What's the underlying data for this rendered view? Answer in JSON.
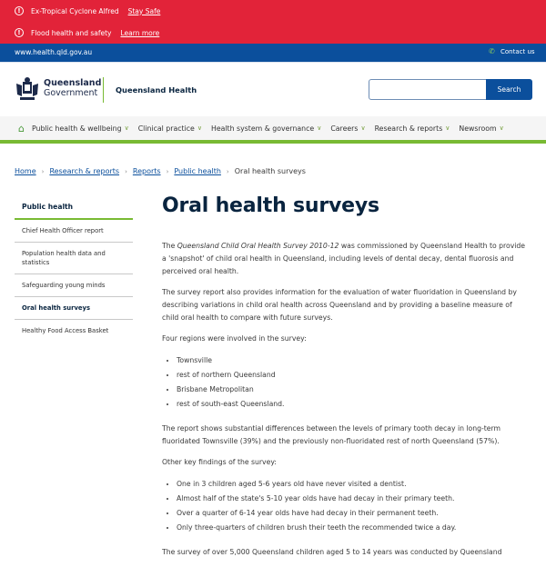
{
  "alerts": [
    {
      "text": "Ex-Tropical Cyclone Alfred",
      "link": "Stay Safe"
    },
    {
      "text": "Flood health and safety",
      "link": "Learn more"
    }
  ],
  "topbar": {
    "url": "www.health.qld.gov.au",
    "contact": "Contact us"
  },
  "header": {
    "logo_line1": "Queensland",
    "logo_line2": "Government",
    "site_name": "Queensland Health",
    "search_placeholder": "",
    "search_button": "Search"
  },
  "nav": [
    "Public health & wellbeing",
    "Clinical practice",
    "Health system & governance",
    "Careers",
    "Research & reports",
    "Newsroom"
  ],
  "breadcrumb": [
    "Home",
    "Research & reports",
    "Reports",
    "Public health"
  ],
  "breadcrumb_current": "Oral health surveys",
  "sidebar": {
    "heading": "Public health",
    "items": [
      "Chief Health Officer report",
      "Population health data and statistics",
      "Safeguarding young minds",
      "Oral health surveys",
      "Healthy Food Access Basket"
    ]
  },
  "title": "Oral health surveys",
  "content": {
    "p1_a": "The ",
    "p1_em": "Queensland Child Oral Health Survey 2010-12",
    "p1_b": " was commissioned by Queensland Health to provide a 'snapshot' of child oral health in Queensland, including levels of dental decay, dental fluorosis and perceived oral health.",
    "p2": "The survey report also provides information for the evaluation of water fluoridation in Queensland by describing variations in child oral health across Queensland and by providing a baseline measure of child oral health to compare with future surveys.",
    "p3": "Four regions were involved in the survey:",
    "regions": [
      "Townsville",
      "rest of northern Queensland",
      "Brisbane Metropolitan",
      "rest of south-east Queensland."
    ],
    "p4": "The report shows substantial differences between the levels of primary tooth decay in long-term fluoridated Townsville (39%) and the previously non-fluoridated rest of north Queensland (57%).",
    "p5": "Other key findings of the survey:",
    "findings": [
      "One in 3 children aged 5-6 years old have never visited a dentist.",
      "Almost half of the state's 5-10 year olds have had decay in their primary teeth.",
      "Over a quarter of 6-14 year olds have had decay in their permanent teeth.",
      "Only three-quarters of children brush their teeth the recommended twice a day."
    ],
    "p6": "The survey of over 5,000 Queensland children aged 5 to 14 years was conducted by Queensland"
  },
  "colors": {
    "alert": "#e22339",
    "brand_blue": "#0b4f9c",
    "accent_green": "#78ba33",
    "title": "#09243f"
  }
}
